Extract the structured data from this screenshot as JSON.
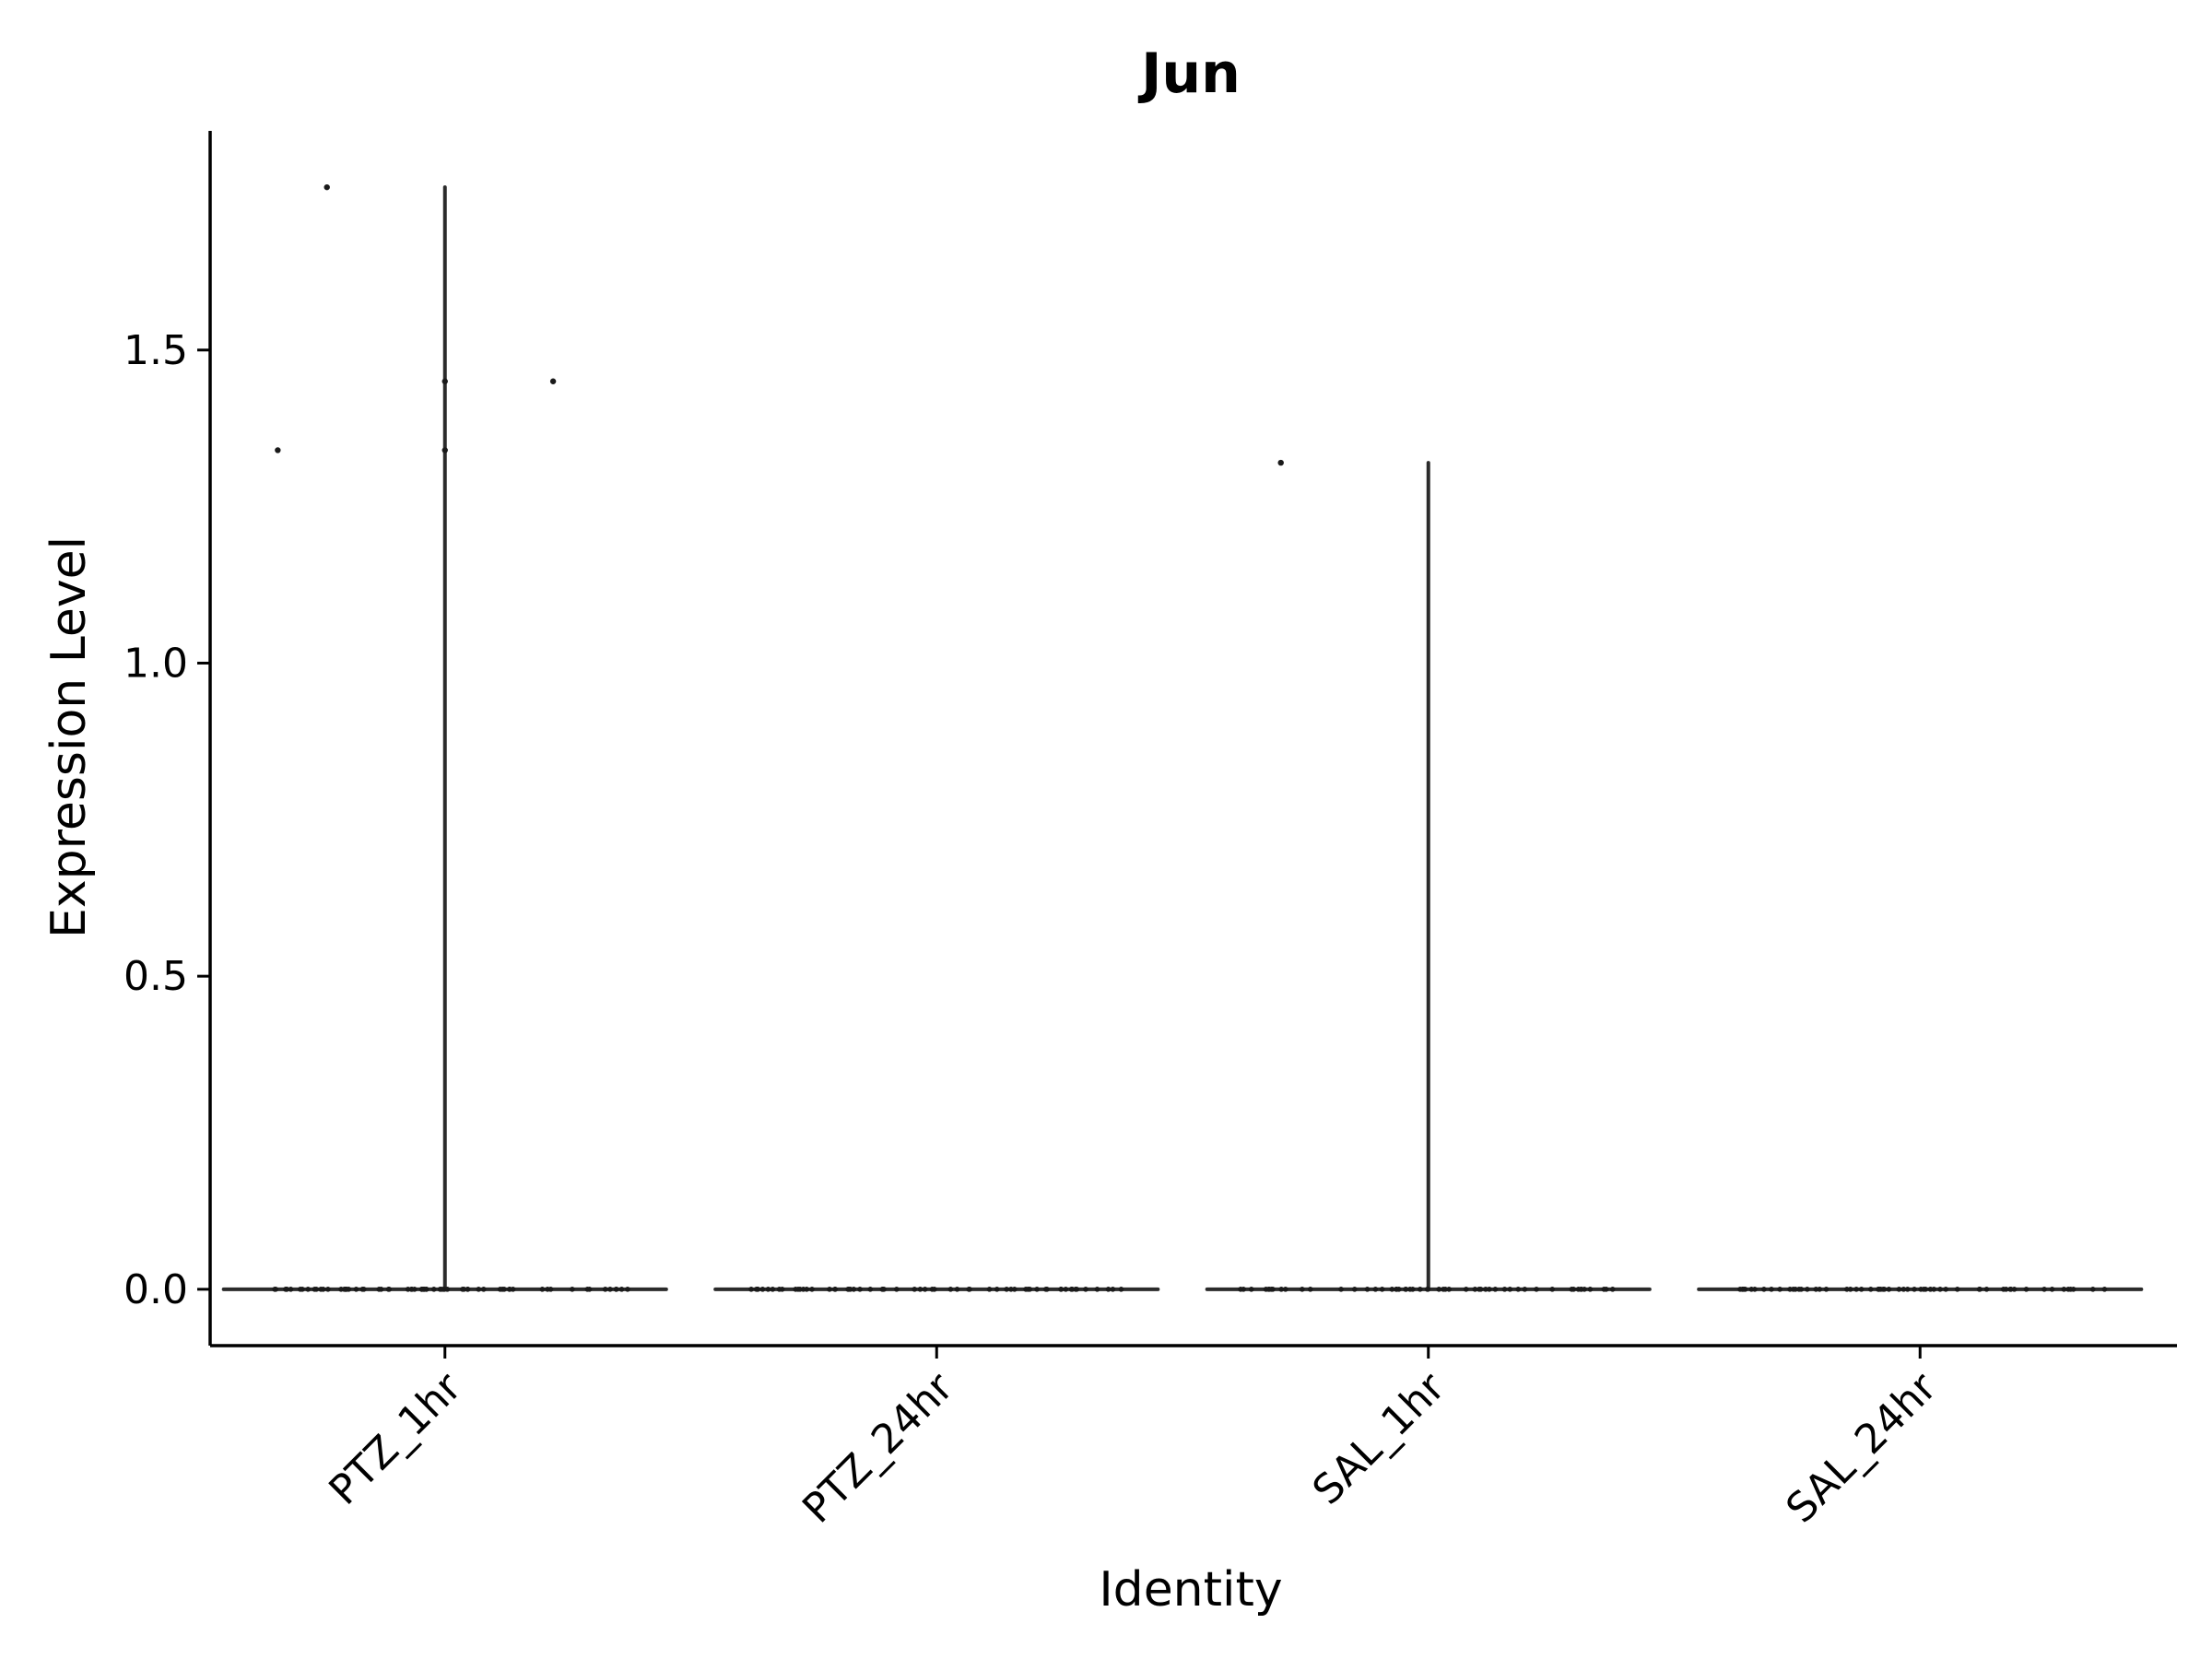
{
  "chart_data": {
    "type": "violin",
    "title": "Jun",
    "xlabel": "Identity",
    "ylabel": "Expression Level",
    "categories": [
      "PTZ_1hr",
      "PTZ_24hr",
      "SAL_1hr",
      "SAL_24hr"
    ],
    "ylim": [
      -0.09,
      1.85
    ],
    "yticks": [
      0.0,
      0.5,
      1.0,
      1.5
    ],
    "ytick_labels": [
      "0.0",
      "0.5",
      "1.0",
      "1.5"
    ],
    "series": [
      {
        "category": "PTZ_1hr",
        "max": 1.76,
        "nonzero_points": [
          {
            "offset": -0.34,
            "value": 1.34
          },
          {
            "offset": -0.24,
            "value": 1.76
          },
          {
            "offset": 0.0,
            "value": 1.45
          },
          {
            "offset": 0.0,
            "value": 1.34
          },
          {
            "offset": 0.22,
            "value": 1.45
          }
        ],
        "zero_count": 70
      },
      {
        "category": "PTZ_24hr",
        "max": 0.0,
        "nonzero_points": [],
        "zero_count": 60
      },
      {
        "category": "SAL_1hr",
        "max": 1.32,
        "nonzero_points": [
          {
            "offset": -0.3,
            "value": 1.32
          }
        ],
        "zero_count": 55
      },
      {
        "category": "SAL_24hr",
        "max": 0.0,
        "nonzero_points": [],
        "zero_count": 60
      }
    ]
  }
}
